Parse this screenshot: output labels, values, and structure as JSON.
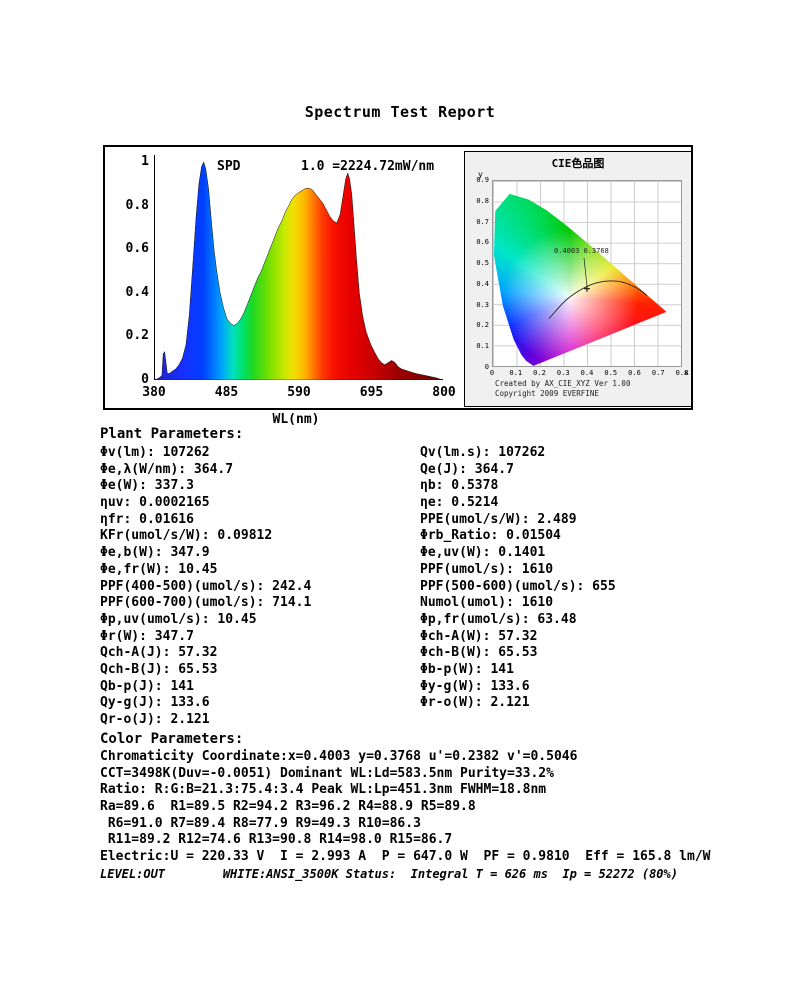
{
  "title": "Spectrum Test Report",
  "spd": {
    "label": "SPD",
    "scale_label": "1.0 =2224.72mW/nm",
    "x_axis_label": "WL(nm)",
    "x_ticks": [
      "380",
      "485",
      "590",
      "695",
      "800"
    ],
    "y_ticks": [
      "1",
      "0.8",
      "0.6",
      "0.4",
      "0.2",
      "0"
    ]
  },
  "cie": {
    "title": "CIE色品图",
    "point_label": "0.4003 0.3768",
    "y_unit": "y",
    "x_unit": "x",
    "y_ticks": [
      "0.9",
      "0.8",
      "0.7",
      "0.6",
      "0.5",
      "0.4",
      "0.3",
      "0.2",
      "0.1",
      "0"
    ],
    "x_ticks": [
      "0",
      "0.1",
      "0.2",
      "0.3",
      "0.4",
      "0.5",
      "0.6",
      "0.7",
      "0.8"
    ],
    "credit1": "Created by AX_CIE_XYZ Ver 1.00",
    "credit2": "Copyright 2009 EVERFINE"
  },
  "plant_parameters": {
    "heading": "Plant Parameters:",
    "left": [
      "Φv(lm): 107262",
      "Φe,λ(W/nm): 364.7",
      "Φe(W): 337.3",
      "ηuv: 0.0002165",
      "ηfr: 0.01616",
      "KFr(umol/s/W): 0.09812",
      "Φe,b(W): 347.9",
      "Φe,fr(W): 10.45",
      "PPF(400-500)(umol/s): 242.4",
      "PPF(600-700)(umol/s): 714.1",
      "Φp,uv(umol/s): 10.45",
      "Φr(W): 347.7",
      "Qch-A(J): 57.32",
      "Qch-B(J): 65.53",
      "Qb-p(J): 141",
      "Qy-g(J): 133.6",
      "Qr-o(J): 2.121"
    ],
    "right": [
      "Qv(lm.s): 107262",
      "Qe(J): 364.7",
      "ηb: 0.5378",
      "ηe: 0.5214",
      "PPE(umol/s/W): 2.489",
      "Φrb_Ratio: 0.01504",
      "Φe,uv(W): 0.1401",
      "PPF(umol/s): 1610",
      "PPF(500-600)(umol/s): 655",
      "Numol(umol): 1610",
      "Φp,fr(umol/s): 63.48",
      "Φch-A(W): 57.32",
      "Φch-B(W): 65.53",
      "Φb-p(W): 141",
      "Φy-g(W): 133.6",
      "Φr-o(W): 2.121"
    ]
  },
  "color_parameters": {
    "heading": "Color Parameters:",
    "lines": [
      "Chromaticity Coordinate:x=0.4003 y=0.3768 u'=0.2382 v'=0.5046",
      "CCT=3498K(Duv=-0.0051) Dominant WL:Ld=583.5nm Purity=33.2%",
      "Ratio: R:G:B=21.3:75.4:3.4 Peak WL:Lp=451.3nm FWHM=18.8nm",
      "Ra=89.6  R1=89.5 R2=94.2 R3=96.2 R4=88.9 R5=89.8",
      " R6=91.0 R7=89.4 R8=77.9 R9=49.3 R10=86.3",
      " R11=89.2 R12=74.6 R13=90.8 R14=98.0 R15=86.7",
      "Electric:U = 220.33 V  I = 2.993 A  P = 647.0 W  PF = 0.9810  Eff = 165.8 lm/W"
    ],
    "footer": "LEVEL:OUT        WHITE:ANSI_3500K Status:  Integral T = 626 ms  Ip = 52272 (80%)"
  },
  "chart_data": [
    {
      "type": "area",
      "title": "SPD",
      "xlabel": "WL(nm)",
      "ylabel": "",
      "xlim": [
        380,
        800
      ],
      "ylim": [
        0,
        1
      ],
      "x_ticks": [
        380,
        485,
        590,
        695,
        800
      ],
      "scale_note": "1.0 =2224.72mW/nm",
      "x": [
        380,
        386,
        390,
        392,
        394,
        396,
        398,
        401,
        405,
        410,
        415,
        420,
        425,
        430,
        435,
        440,
        444,
        448,
        451,
        454,
        458,
        462,
        466,
        470,
        475,
        480,
        485,
        490,
        495,
        500,
        505,
        510,
        515,
        520,
        525,
        530,
        535,
        540,
        545,
        550,
        555,
        560,
        565,
        570,
        575,
        580,
        585,
        590,
        595,
        600,
        605,
        610,
        615,
        620,
        625,
        630,
        635,
        640,
        645,
        650,
        654,
        658,
        661,
        664,
        667,
        670,
        674,
        678,
        683,
        688,
        695,
        700,
        705,
        710,
        715,
        720,
        725,
        730,
        735,
        740,
        750,
        760,
        775,
        790,
        800
      ],
      "y": [
        0.0,
        0.01,
        0.02,
        0.12,
        0.13,
        0.08,
        0.03,
        0.03,
        0.04,
        0.05,
        0.07,
        0.1,
        0.16,
        0.3,
        0.52,
        0.75,
        0.9,
        0.98,
        1.0,
        0.97,
        0.88,
        0.74,
        0.6,
        0.5,
        0.4,
        0.33,
        0.28,
        0.26,
        0.25,
        0.26,
        0.28,
        0.31,
        0.35,
        0.39,
        0.43,
        0.47,
        0.5,
        0.54,
        0.58,
        0.62,
        0.66,
        0.7,
        0.73,
        0.77,
        0.8,
        0.83,
        0.85,
        0.86,
        0.87,
        0.88,
        0.88,
        0.87,
        0.85,
        0.83,
        0.81,
        0.78,
        0.75,
        0.73,
        0.72,
        0.76,
        0.84,
        0.92,
        0.95,
        0.92,
        0.85,
        0.72,
        0.55,
        0.4,
        0.29,
        0.22,
        0.16,
        0.13,
        0.1,
        0.08,
        0.07,
        0.08,
        0.09,
        0.08,
        0.06,
        0.05,
        0.04,
        0.03,
        0.02,
        0.01,
        0.0
      ]
    },
    {
      "type": "scatter",
      "title": "CIE色品图",
      "xlabel": "x",
      "ylabel": "y",
      "xlim": [
        0,
        0.8
      ],
      "ylim": [
        0,
        0.9
      ],
      "grid": true,
      "points": [
        {
          "x": 0.4003,
          "y": 0.3768,
          "label": "0.4003 0.3768"
        }
      ]
    }
  ]
}
